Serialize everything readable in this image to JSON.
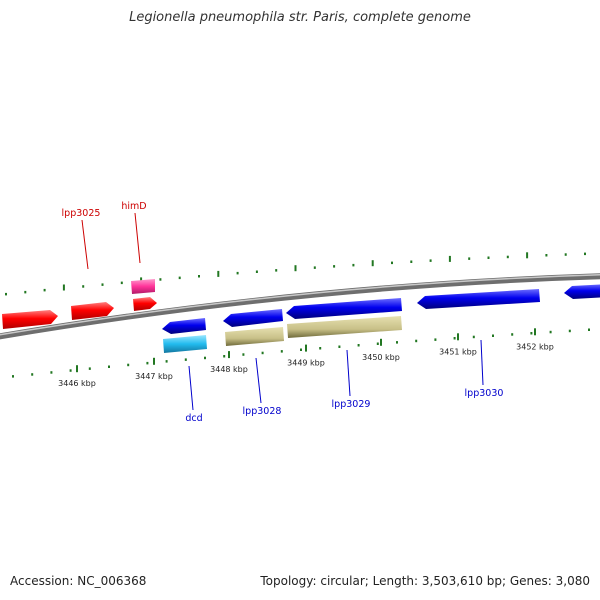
{
  "title": "Legionella pneumophila str. Paris, complete genome",
  "footer": {
    "accession": "Accession: NC_006368",
    "summary": "Topology: circular; Length: 3,503,610 bp; Genes: 3,080"
  },
  "colors": {
    "forward_gene": "#ff0000",
    "reverse_gene": "#0000ee",
    "rna_forward": "#ff3399",
    "rna_reverse": "#22bbee",
    "pseudogene": "#c8c088",
    "backbone": "#8a8a8a",
    "ticks": "#227722",
    "forward_label": "#cc0000",
    "reverse_label": "#0000cc"
  },
  "ruler": {
    "labels": [
      "3446 kbp",
      "3447 kbp",
      "3448 kbp",
      "3449 kbp",
      "3450 kbp",
      "3451 kbp",
      "3452 kbp"
    ]
  },
  "gene_labels": {
    "forward": [
      "lpp3025",
      "himD"
    ],
    "reverse": [
      "dcd",
      "lpp3028",
      "lpp3029",
      "lpp3030"
    ]
  }
}
